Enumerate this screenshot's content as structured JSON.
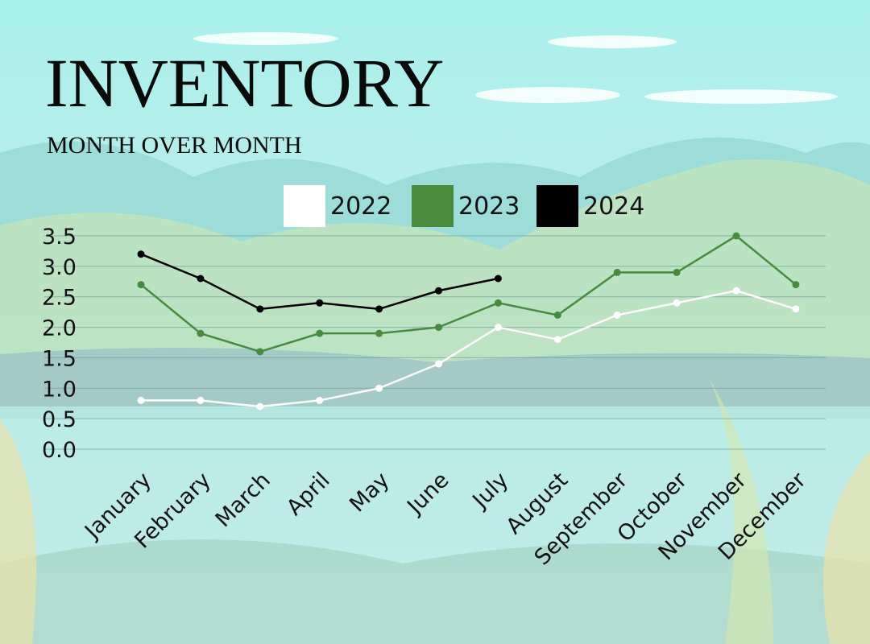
{
  "chart_data": {
    "type": "line",
    "title": "INVENTORY",
    "subtitle": "MONTH OVER MONTH",
    "categories": [
      "January",
      "February",
      "March",
      "April",
      "May",
      "June",
      "July",
      "August",
      "September",
      "October",
      "November",
      "December"
    ],
    "series": [
      {
        "name": "2022",
        "color": "#ffffff",
        "values": [
          0.8,
          0.8,
          0.7,
          0.8,
          1.0,
          1.4,
          2.0,
          1.8,
          2.2,
          2.4,
          2.6,
          2.3
        ]
      },
      {
        "name": "2023",
        "color": "#4a8a3c",
        "values": [
          2.7,
          1.9,
          1.6,
          1.9,
          1.9,
          2.0,
          2.4,
          2.2,
          2.9,
          2.9,
          3.5,
          2.7
        ]
      },
      {
        "name": "2024",
        "color": "#000000",
        "values": [
          3.2,
          2.8,
          2.3,
          2.4,
          2.3,
          2.6,
          2.8,
          null,
          null,
          null,
          null,
          null
        ]
      }
    ],
    "ylim": [
      0,
      3.5
    ],
    "yticks": [
      {
        "value": 0,
        "label": "0.0"
      },
      0.5,
      {
        "value": 1,
        "label": "1.0"
      },
      1.5,
      {
        "value": 2,
        "label": "2.0"
      },
      2.5,
      {
        "value": 3,
        "label": "3.0"
      },
      3.5
    ],
    "grid": true
  }
}
